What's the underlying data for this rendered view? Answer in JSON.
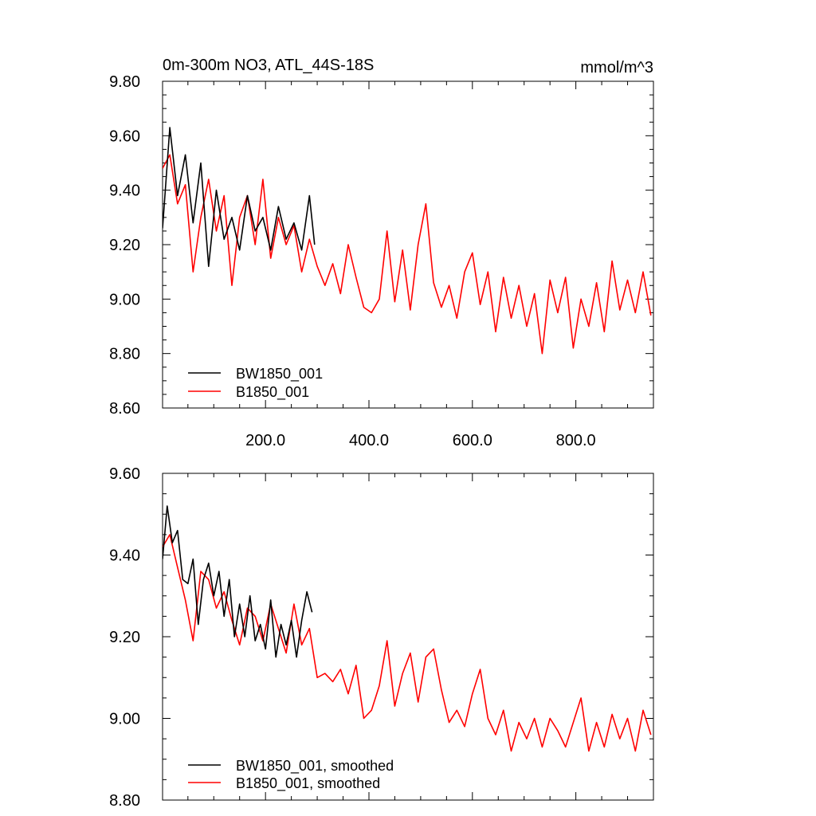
{
  "chart_data": [
    {
      "type": "line",
      "title": "0m-300m NO3, ATL_44S-18S",
      "units_label": "mmol/m^3",
      "xlabel": "",
      "ylabel": "",
      "xlim": [
        1,
        950
      ],
      "ylim": [
        8.6,
        9.8
      ],
      "xticks": [
        200,
        400,
        600,
        800
      ],
      "xtick_labels": [
        "200.0",
        "400.0",
        "600.0",
        "800.0"
      ],
      "yticks": [
        8.6,
        8.8,
        9.0,
        9.2,
        9.4,
        9.6,
        9.8
      ],
      "ytick_labels": [
        "8.60",
        "8.80",
        "9.00",
        "9.20",
        "9.40",
        "9.60",
        "9.80"
      ],
      "grid": false,
      "legend_position": "bottom-left",
      "series": [
        {
          "name": "BW1850_001",
          "color": "#000000",
          "x": [
            1,
            15,
            30,
            45,
            60,
            75,
            90,
            105,
            120,
            135,
            150,
            165,
            180,
            195,
            210,
            225,
            240,
            255,
            270,
            285,
            295
          ],
          "values": [
            9.26,
            9.63,
            9.38,
            9.53,
            9.28,
            9.5,
            9.12,
            9.4,
            9.22,
            9.3,
            9.18,
            9.38,
            9.25,
            9.3,
            9.18,
            9.34,
            9.22,
            9.28,
            9.18,
            9.38,
            9.2
          ]
        },
        {
          "name": "B1850_001",
          "color": "#ff0000",
          "x": [
            1,
            15,
            30,
            45,
            60,
            75,
            90,
            105,
            120,
            135,
            150,
            165,
            180,
            195,
            210,
            225,
            240,
            255,
            270,
            285,
            300,
            315,
            330,
            345,
            360,
            375,
            390,
            405,
            420,
            435,
            450,
            465,
            480,
            495,
            510,
            525,
            540,
            555,
            570,
            585,
            600,
            615,
            630,
            645,
            660,
            675,
            690,
            705,
            720,
            735,
            750,
            765,
            780,
            795,
            810,
            825,
            840,
            855,
            870,
            885,
            900,
            915,
            930,
            945
          ],
          "values": [
            9.48,
            9.53,
            9.35,
            9.42,
            9.1,
            9.3,
            9.44,
            9.25,
            9.38,
            9.05,
            9.3,
            9.38,
            9.2,
            9.44,
            9.15,
            9.3,
            9.2,
            9.27,
            9.1,
            9.22,
            9.12,
            9.05,
            9.13,
            9.02,
            9.2,
            9.08,
            8.97,
            8.95,
            9.0,
            9.25,
            8.99,
            9.18,
            8.96,
            9.2,
            9.35,
            9.06,
            8.97,
            9.05,
            8.93,
            9.1,
            9.17,
            8.98,
            9.1,
            8.88,
            9.08,
            8.93,
            9.05,
            8.9,
            9.02,
            8.8,
            9.07,
            8.95,
            9.08,
            8.82,
            9.0,
            8.9,
            9.06,
            8.88,
            9.14,
            8.96,
            9.07,
            8.95,
            9.1,
            8.94
          ]
        }
      ]
    },
    {
      "type": "line",
      "title": "",
      "xlabel": "",
      "ylabel": "",
      "xlim": [
        1,
        950
      ],
      "ylim": [
        8.8,
        9.6
      ],
      "xticks": [
        200,
        400,
        600,
        800
      ],
      "xtick_labels": [],
      "yticks": [
        8.8,
        9.0,
        9.2,
        9.4,
        9.6
      ],
      "ytick_labels": [
        "8.80",
        "9.00",
        "9.20",
        "9.40",
        "9.60"
      ],
      "grid": false,
      "legend_position": "bottom-left",
      "series": [
        {
          "name": "BW1850_001, smoothed",
          "color": "#000000",
          "x": [
            1,
            10,
            20,
            30,
            40,
            50,
            60,
            70,
            80,
            90,
            100,
            110,
            120,
            130,
            140,
            150,
            160,
            170,
            180,
            190,
            200,
            210,
            220,
            230,
            240,
            250,
            260,
            270,
            280,
            290
          ],
          "values": [
            9.39,
            9.52,
            9.43,
            9.46,
            9.34,
            9.33,
            9.39,
            9.23,
            9.34,
            9.38,
            9.3,
            9.36,
            9.25,
            9.34,
            9.2,
            9.28,
            9.2,
            9.3,
            9.19,
            9.23,
            9.17,
            9.29,
            9.15,
            9.23,
            9.18,
            9.24,
            9.15,
            9.24,
            9.31,
            9.26
          ]
        },
        {
          "name": "B1850_001, smoothed",
          "color": "#ff0000",
          "x": [
            1,
            15,
            30,
            45,
            60,
            75,
            90,
            105,
            120,
            135,
            150,
            165,
            180,
            195,
            210,
            225,
            240,
            255,
            270,
            285,
            300,
            315,
            330,
            345,
            360,
            375,
            390,
            405,
            420,
            435,
            450,
            465,
            480,
            495,
            510,
            525,
            540,
            555,
            570,
            585,
            600,
            615,
            630,
            645,
            660,
            675,
            690,
            705,
            720,
            735,
            750,
            765,
            780,
            795,
            810,
            825,
            840,
            855,
            870,
            885,
            900,
            915,
            930,
            945
          ],
          "values": [
            9.42,
            9.45,
            9.37,
            9.29,
            9.19,
            9.36,
            9.34,
            9.27,
            9.31,
            9.24,
            9.18,
            9.27,
            9.25,
            9.19,
            9.28,
            9.22,
            9.16,
            9.28,
            9.18,
            9.22,
            9.1,
            9.11,
            9.09,
            9.12,
            9.06,
            9.13,
            9.0,
            9.02,
            9.08,
            9.19,
            9.03,
            9.11,
            9.16,
            9.04,
            9.15,
            9.17,
            9.07,
            8.99,
            9.02,
            8.98,
            9.06,
            9.12,
            9.0,
            8.96,
            9.02,
            8.92,
            8.99,
            8.95,
            9.0,
            8.93,
            9.0,
            8.97,
            8.93,
            8.99,
            9.05,
            8.92,
            8.99,
            8.93,
            9.01,
            8.95,
            9.0,
            8.92,
            9.02,
            8.96
          ]
        }
      ]
    }
  ]
}
